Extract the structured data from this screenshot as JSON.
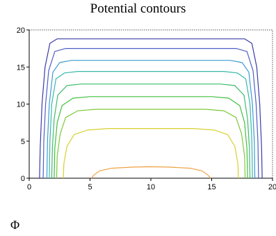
{
  "chart_data": {
    "type": "line",
    "title": "Potential contours",
    "xlabel": "",
    "ylabel": "",
    "xlim": [
      0,
      20
    ],
    "ylim": [
      0,
      20
    ],
    "x_ticks": [
      0,
      5,
      10,
      15,
      20
    ],
    "y_ticks": [
      0,
      5,
      10,
      15,
      20
    ],
    "grid": false,
    "series": [
      {
        "color": "#3a3aa8",
        "points": [
          [
            0.85,
            0
          ],
          [
            0.9,
            4
          ],
          [
            1.05,
            10
          ],
          [
            1.3,
            15
          ],
          [
            1.7,
            18.2
          ],
          [
            2.3,
            18.8
          ],
          [
            10,
            18.8
          ],
          [
            17.7,
            18.8
          ],
          [
            18.3,
            18.2
          ],
          [
            18.7,
            15
          ],
          [
            18.95,
            10
          ],
          [
            19.1,
            4
          ],
          [
            19.15,
            0
          ]
        ]
      },
      {
        "color": "#4d5fc8",
        "points": [
          [
            1.15,
            0
          ],
          [
            1.2,
            5
          ],
          [
            1.35,
            10
          ],
          [
            1.6,
            14.5
          ],
          [
            2.1,
            17.1
          ],
          [
            3.0,
            17.5
          ],
          [
            10,
            17.5
          ],
          [
            17.0,
            17.5
          ],
          [
            17.9,
            17.1
          ],
          [
            18.4,
            14.5
          ],
          [
            18.65,
            10
          ],
          [
            18.8,
            5
          ],
          [
            18.85,
            0
          ]
        ]
      },
      {
        "color": "#3b9bd0",
        "points": [
          [
            1.45,
            0
          ],
          [
            1.5,
            5
          ],
          [
            1.65,
            10
          ],
          [
            1.95,
            14.3
          ],
          [
            2.5,
            15.6
          ],
          [
            3.5,
            15.9
          ],
          [
            10,
            15.9
          ],
          [
            16.5,
            15.9
          ],
          [
            17.5,
            15.6
          ],
          [
            18.05,
            14.3
          ],
          [
            18.35,
            10
          ],
          [
            18.5,
            5
          ],
          [
            18.55,
            0
          ]
        ]
      },
      {
        "color": "#35b8a8",
        "points": [
          [
            1.65,
            0
          ],
          [
            1.7,
            5
          ],
          [
            1.85,
            10
          ],
          [
            2.2,
            13.4
          ],
          [
            2.9,
            14.2
          ],
          [
            4.0,
            14.4
          ],
          [
            10,
            14.4
          ],
          [
            16.0,
            14.4
          ],
          [
            17.1,
            14.2
          ],
          [
            17.8,
            13.4
          ],
          [
            18.15,
            10
          ],
          [
            18.3,
            5
          ],
          [
            18.35,
            0
          ]
        ]
      },
      {
        "color": "#3dbb6a",
        "points": [
          [
            1.85,
            0
          ],
          [
            1.9,
            4
          ],
          [
            2.05,
            8
          ],
          [
            2.35,
            11.2
          ],
          [
            3.1,
            12.5
          ],
          [
            4.3,
            12.7
          ],
          [
            10,
            12.7
          ],
          [
            15.7,
            12.7
          ],
          [
            16.9,
            12.5
          ],
          [
            17.65,
            11.2
          ],
          [
            17.95,
            8
          ],
          [
            18.1,
            4
          ],
          [
            18.15,
            0
          ]
        ]
      },
      {
        "color": "#3fc03f",
        "points": [
          [
            2.05,
            0
          ],
          [
            2.1,
            4
          ],
          [
            2.3,
            7.5
          ],
          [
            2.7,
            9.8
          ],
          [
            3.6,
            10.8
          ],
          [
            5.0,
            11.0
          ],
          [
            10,
            11.0
          ],
          [
            15.0,
            11.0
          ],
          [
            16.4,
            10.8
          ],
          [
            17.3,
            9.8
          ],
          [
            17.7,
            7.5
          ],
          [
            17.9,
            4
          ],
          [
            17.95,
            0
          ]
        ]
      },
      {
        "color": "#7cc83a",
        "points": [
          [
            2.25,
            0
          ],
          [
            2.3,
            3
          ],
          [
            2.55,
            6
          ],
          [
            3.0,
            8.2
          ],
          [
            4.0,
            9.1
          ],
          [
            5.5,
            9.3
          ],
          [
            10,
            9.3
          ],
          [
            14.5,
            9.3
          ],
          [
            16.0,
            9.1
          ],
          [
            17.0,
            8.2
          ],
          [
            17.45,
            6
          ],
          [
            17.7,
            3
          ],
          [
            17.75,
            0
          ]
        ]
      },
      {
        "color": "#d8cf2e",
        "points": [
          [
            2.8,
            0
          ],
          [
            2.85,
            2
          ],
          [
            3.1,
            4.3
          ],
          [
            3.7,
            5.9
          ],
          [
            4.8,
            6.5
          ],
          [
            6.5,
            6.7
          ],
          [
            10,
            6.7
          ],
          [
            13.5,
            6.7
          ],
          [
            15.2,
            6.5
          ],
          [
            16.3,
            5.9
          ],
          [
            16.9,
            4.3
          ],
          [
            17.15,
            2
          ],
          [
            17.2,
            0
          ]
        ]
      },
      {
        "color": "#f0a040",
        "points": [
          [
            5.1,
            0
          ],
          [
            5.3,
            0.4
          ],
          [
            5.8,
            1.0
          ],
          [
            6.8,
            1.35
          ],
          [
            8.5,
            1.5
          ],
          [
            10,
            1.55
          ],
          [
            11.5,
            1.5
          ],
          [
            13.2,
            1.35
          ],
          [
            14.2,
            1.0
          ],
          [
            14.7,
            0.4
          ],
          [
            14.9,
            0
          ]
        ]
      }
    ]
  },
  "page": {
    "symbol_label": "Φ"
  }
}
